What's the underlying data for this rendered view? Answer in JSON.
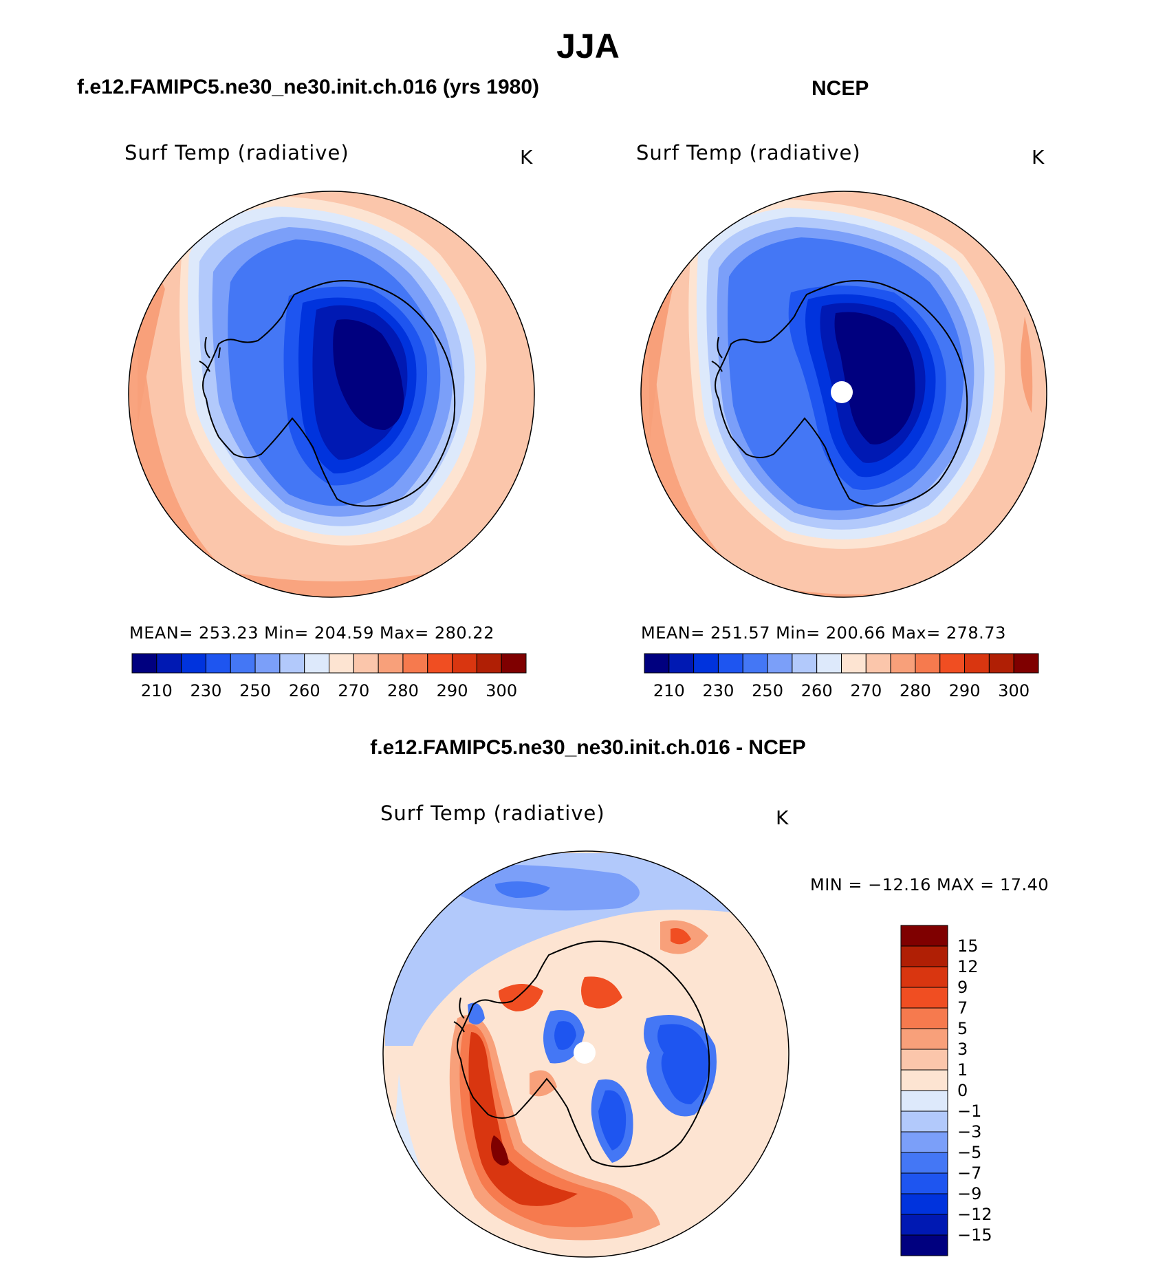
{
  "figure": {
    "title": "JJA",
    "left_title": "f.e12.FAMIPC5.ne30_ne30.init.ch.016 (yrs 1980)",
    "right_title": "NCEP",
    "diff_title": "f.e12.FAMIPC5.ne30_ne30.init.ch.016 - NCEP"
  },
  "panels": {
    "left": {
      "variable": "Surf Temp (radiative)",
      "units": "K",
      "stats": "MEAN=  253.23    Min=  204.59    Max=  280.22",
      "colorbar_ticks": [
        "210",
        "230",
        "250",
        "260",
        "270",
        "280",
        "290",
        "300"
      ]
    },
    "right": {
      "variable": "Surf Temp (radiative)",
      "units": "K",
      "stats": "MEAN=  251.57    Min=  200.66    Max=  278.73",
      "colorbar_ticks": [
        "210",
        "230",
        "250",
        "260",
        "270",
        "280",
        "290",
        "300"
      ]
    },
    "diff": {
      "variable": "Surf Temp (radiative)",
      "units": "K",
      "stats": "MIN  =  −12.16  MAX  =    17.40",
      "colorbar_ticks": [
        "15",
        "12",
        "9",
        "7",
        "5",
        "3",
        "1",
        "0",
        "−1",
        "−3",
        "−5",
        "−7",
        "−9",
        "−12",
        "−15"
      ]
    }
  },
  "colors": {
    "abs_scale": [
      "#00007f",
      "#0019b3",
      "#0033dd",
      "#1e55f0",
      "#4477f5",
      "#7b9ff9",
      "#b2c9fb",
      "#dde9fb",
      "#fde4d2",
      "#fbc6ab",
      "#f8a07a",
      "#f67a4e",
      "#f04e22",
      "#d93610",
      "#b01f05",
      "#7f0000"
    ],
    "diff_scale_top_to_bottom": [
      "#7f0000",
      "#b01f05",
      "#d93610",
      "#f04e22",
      "#f67a4e",
      "#f8a07a",
      "#fbc6ab",
      "#fde4d2",
      "#dde9fb",
      "#b2c9fb",
      "#7b9ff9",
      "#4477f5",
      "#1e55f0",
      "#0033dd",
      "#0019b3",
      "#00007f"
    ]
  }
}
